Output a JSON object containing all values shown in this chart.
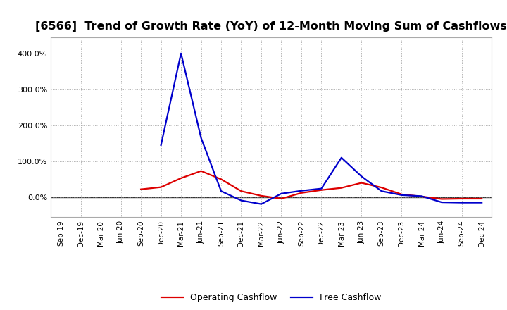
{
  "title": "[6566]  Trend of Growth Rate (YoY) of 12-Month Moving Sum of Cashflows",
  "title_fontsize": 11.5,
  "background_color": "#ffffff",
  "plot_bg_color": "#ffffff",
  "grid_color": "#999999",
  "x_labels": [
    "Sep-19",
    "Dec-19",
    "Mar-20",
    "Jun-20",
    "Sep-20",
    "Dec-20",
    "Mar-21",
    "Jun-21",
    "Sep-21",
    "Dec-21",
    "Mar-22",
    "Jun-22",
    "Sep-22",
    "Dec-22",
    "Mar-23",
    "Jun-23",
    "Sep-23",
    "Dec-23",
    "Mar-24",
    "Jun-24",
    "Sep-24",
    "Dec-24"
  ],
  "operating_cashflow": [
    null,
    null,
    null,
    null,
    0.22,
    0.28,
    0.53,
    0.73,
    0.5,
    0.17,
    0.04,
    -0.04,
    0.12,
    0.2,
    0.26,
    0.4,
    0.27,
    0.08,
    0.02,
    -0.05,
    -0.04,
    -0.04
  ],
  "free_cashflow": [
    null,
    null,
    null,
    null,
    null,
    1.45,
    4.0,
    1.65,
    0.17,
    -0.09,
    -0.19,
    0.1,
    0.18,
    0.24,
    1.1,
    0.58,
    0.17,
    0.06,
    0.03,
    -0.14,
    -0.15,
    -0.15
  ],
  "ylim_min": -0.55,
  "ylim_max": 4.45,
  "yticks": [
    0.0,
    1.0,
    2.0,
    3.0,
    4.0
  ],
  "ytick_labels": [
    "0.0%",
    "100.0%",
    "200.0%",
    "300.0%",
    "400.0%"
  ],
  "operating_color": "#dd0000",
  "free_color": "#0000cc",
  "line_width": 1.6,
  "legend_labels": [
    "Operating Cashflow",
    "Free Cashflow"
  ],
  "legend_fontsize": 9,
  "tick_fontsize": 7.5,
  "ytick_fontsize": 8.0
}
